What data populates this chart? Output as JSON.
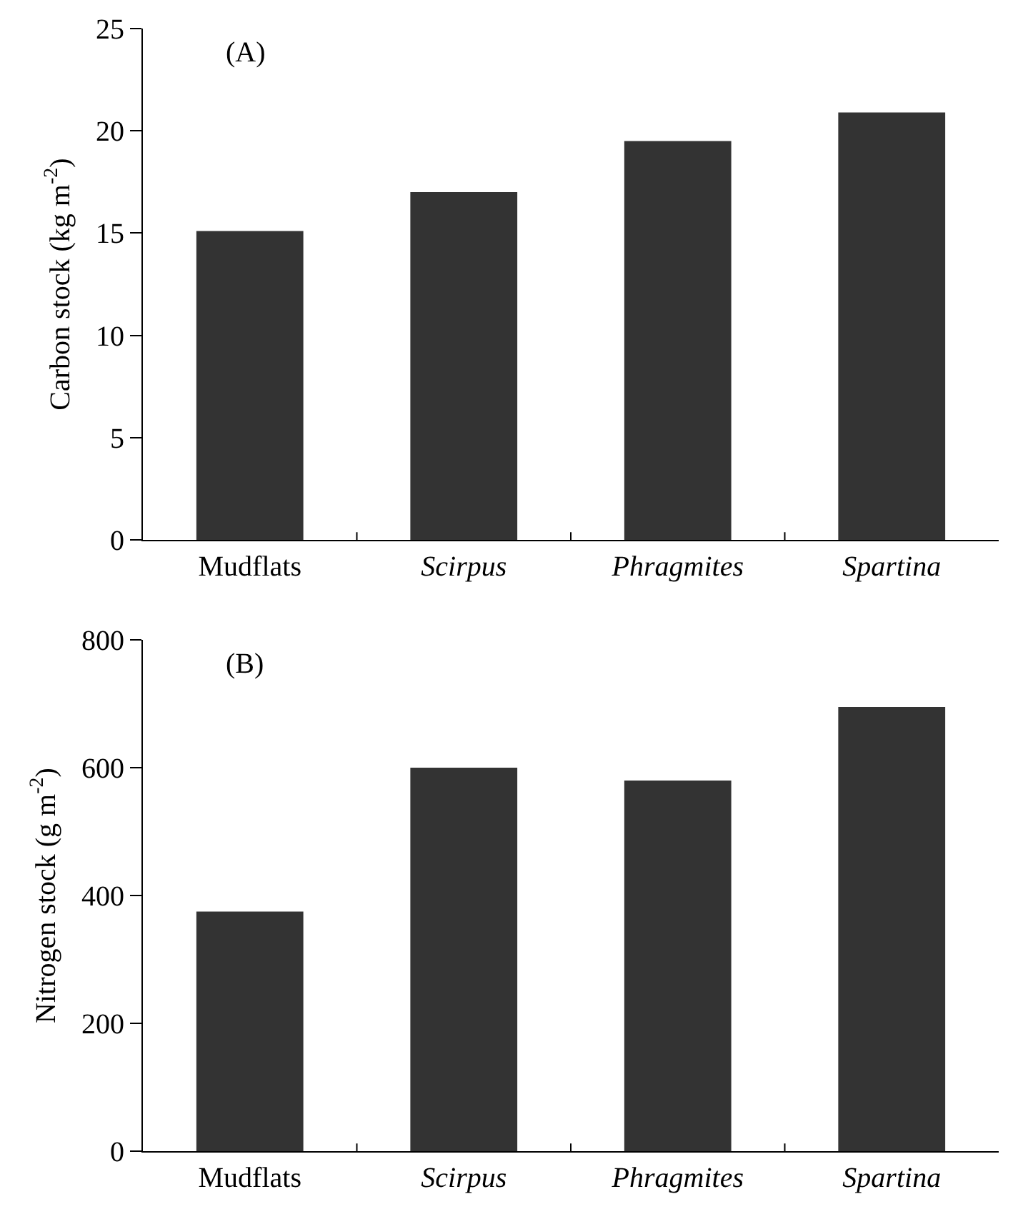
{
  "chart_data": [
    {
      "type": "bar",
      "categories": [
        "Mudflats",
        "Scirpus",
        "Phragmites",
        "Spartina"
      ],
      "values": [
        15.1,
        17.0,
        19.5,
        20.9
      ],
      "color": "#333333",
      "ylabel": "Carbon stock (kg m$^{-2}$)",
      "ylim": [
        0,
        25
      ],
      "yticks": [
        0,
        5,
        10,
        15,
        20,
        25
      ],
      "grid": false,
      "legend": false,
      "annotations": [
        "(A)"
      ]
    },
    {
      "type": "bar",
      "categories": [
        "Mudflats",
        "Scirpus",
        "Phragmites",
        "Spartina"
      ],
      "values": [
        375,
        600,
        580,
        695
      ],
      "color": "#333333",
      "ylabel": "Nitrogen stock (g m$^{-2}$)",
      "ylim": [
        0,
        800
      ],
      "yticks": [
        0,
        200,
        400,
        600,
        800
      ],
      "grid": false,
      "legend": false,
      "annotations": [
        "(B)"
      ]
    }
  ]
}
